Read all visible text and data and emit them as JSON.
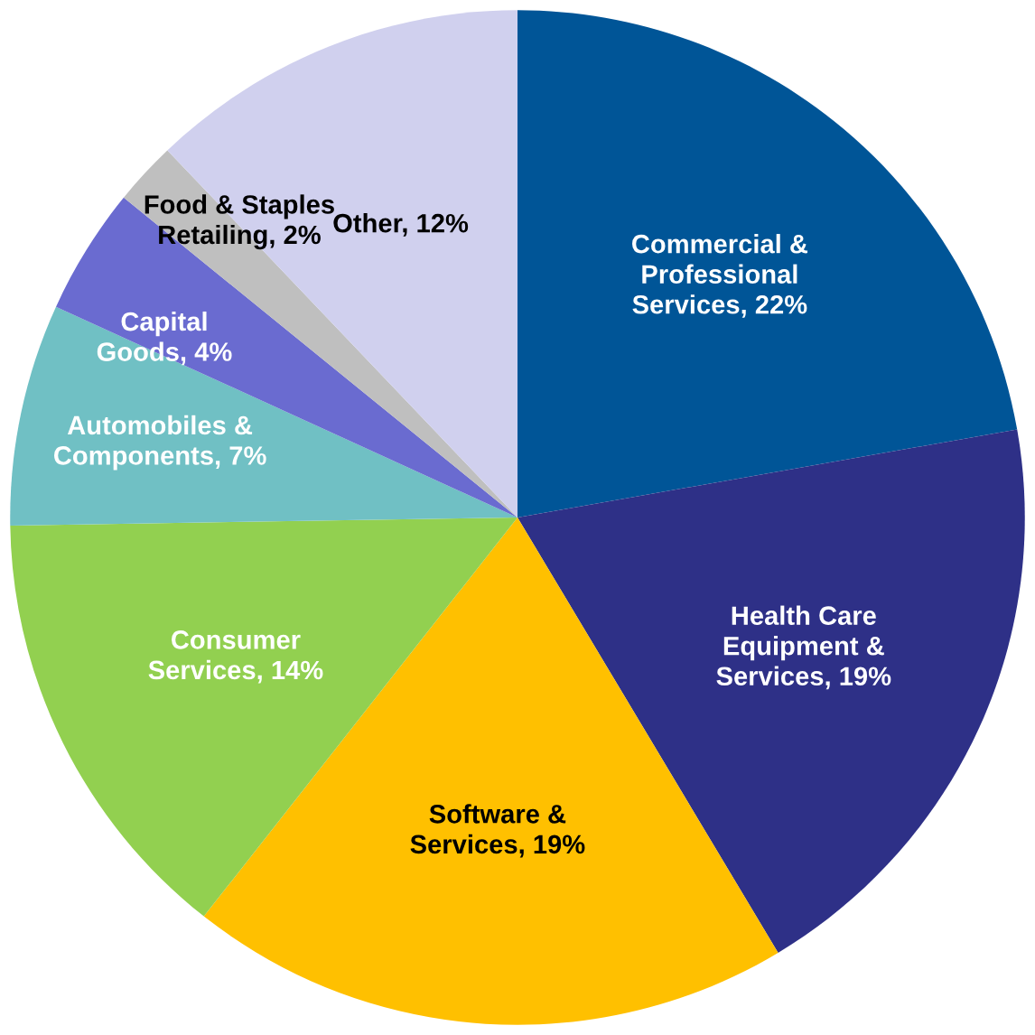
{
  "chart_data": {
    "type": "pie",
    "categories": [
      "Commercial & Professional Services",
      "Health Care Equipment & Services",
      "Software & Services",
      "Consumer Services",
      "Automobiles & Components",
      "Capital Goods",
      "Food & Staples Retailing",
      "Other"
    ],
    "values": [
      22,
      19,
      19,
      14,
      7,
      4,
      2,
      12
    ],
    "value_labels": [
      "22%",
      "19%",
      "19%",
      "14%",
      "7%",
      "4%",
      "2%",
      "12%"
    ],
    "colors": [
      "#005597",
      "#2e3087",
      "#ffc000",
      "#92d050",
      "#70c0c4",
      "#6a6bd0",
      "#bfbfbf",
      "#d0d0ee"
    ],
    "legend": false
  }
}
